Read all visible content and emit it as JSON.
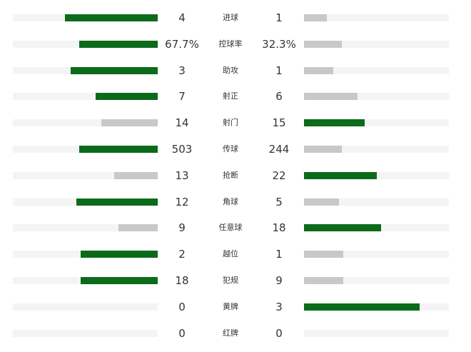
{
  "colors": {
    "higher": "#0b6b1a",
    "lower": "#c8c8c8",
    "track": "#f4f4f4",
    "text": "#333333"
  },
  "stats": [
    {
      "label": "进球",
      "home": "4",
      "away": "1",
      "home_ratio": 0.64,
      "away_ratio": 0.16
    },
    {
      "label": "控球率",
      "home": "67.7%",
      "away": "32.3%",
      "home_ratio": 0.54,
      "away_ratio": 0.26
    },
    {
      "label": "助攻",
      "home": "3",
      "away": "1",
      "home_ratio": 0.6,
      "away_ratio": 0.2
    },
    {
      "label": "射正",
      "home": "7",
      "away": "6",
      "home_ratio": 0.43,
      "away_ratio": 0.37
    },
    {
      "label": "射门",
      "home": "14",
      "away": "15",
      "home_ratio": 0.39,
      "away_ratio": 0.42
    },
    {
      "label": "传球",
      "home": "503",
      "away": "244",
      "home_ratio": 0.54,
      "away_ratio": 0.26
    },
    {
      "label": "抢断",
      "home": "13",
      "away": "22",
      "home_ratio": 0.3,
      "away_ratio": 0.5
    },
    {
      "label": "角球",
      "home": "12",
      "away": "5",
      "home_ratio": 0.56,
      "away_ratio": 0.24
    },
    {
      "label": "任意球",
      "home": "9",
      "away": "18",
      "home_ratio": 0.27,
      "away_ratio": 0.53
    },
    {
      "label": "越位",
      "home": "2",
      "away": "1",
      "home_ratio": 0.53,
      "away_ratio": 0.27
    },
    {
      "label": "犯规",
      "home": "18",
      "away": "9",
      "home_ratio": 0.53,
      "away_ratio": 0.27
    },
    {
      "label": "黄牌",
      "home": "0",
      "away": "3",
      "home_ratio": 0.0,
      "away_ratio": 0.8
    },
    {
      "label": "红牌",
      "home": "0",
      "away": "0",
      "home_ratio": 0.0,
      "away_ratio": 0.0
    }
  ]
}
